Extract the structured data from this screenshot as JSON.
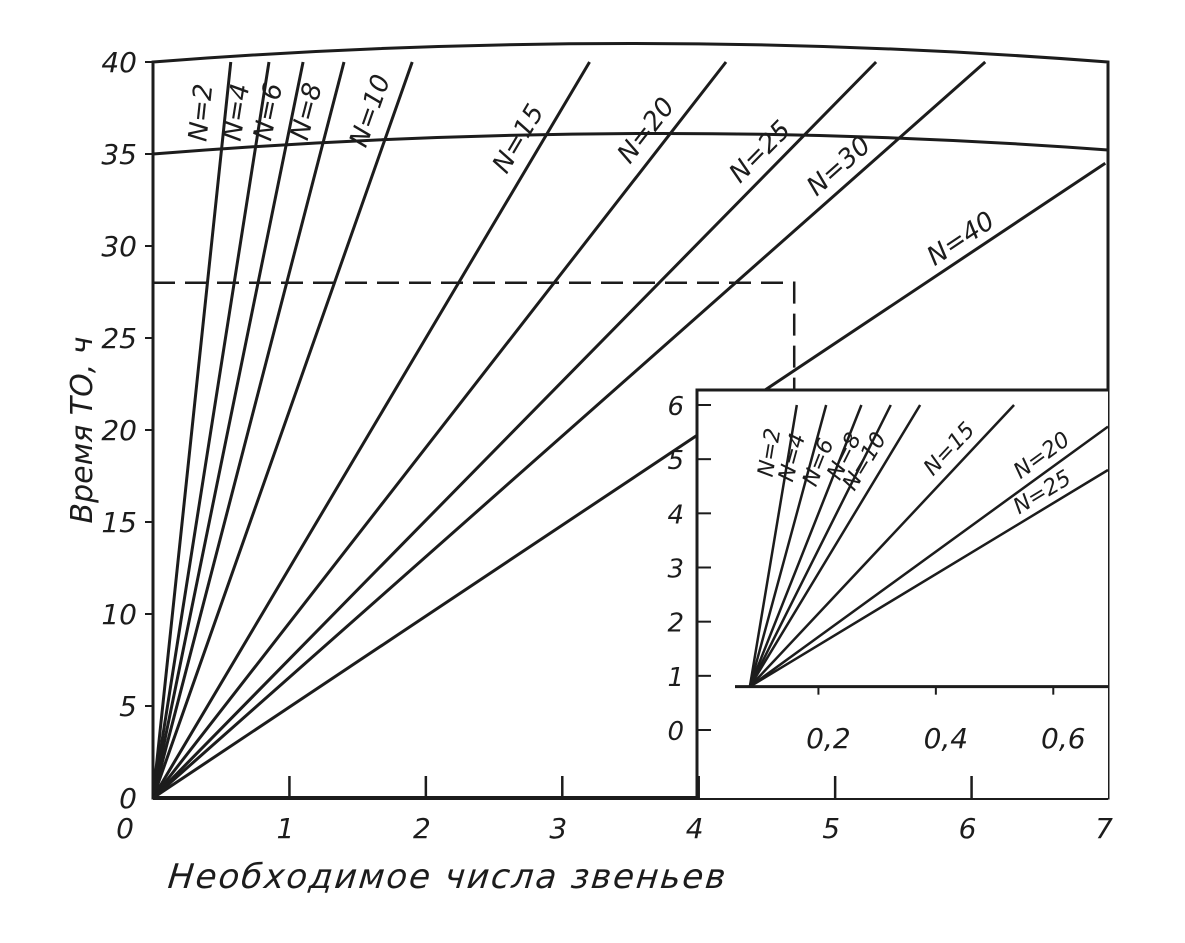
{
  "chart_data": [
    {
      "type": "line",
      "xlabel": "Необходимое числа звеньев",
      "ylabel": "Время ТО, ч",
      "xlim": [
        0,
        7
      ],
      "ylim": [
        0,
        40
      ],
      "x_ticks": [
        "0",
        "1",
        "2",
        "3",
        "4",
        "5",
        "6",
        "7"
      ],
      "y_ticks": [
        "0",
        "5",
        "10",
        "15",
        "20",
        "25",
        "30",
        "35",
        "40"
      ],
      "grid": false,
      "series": [
        {
          "name": "N=2",
          "x": [
            0,
            0.57
          ],
          "y": [
            0,
            40
          ]
        },
        {
          "name": "N=4",
          "x": [
            0,
            0.85
          ],
          "y": [
            0,
            40
          ]
        },
        {
          "name": "N=6",
          "x": [
            0,
            1.1
          ],
          "y": [
            0,
            40
          ]
        },
        {
          "name": "N=8",
          "x": [
            0,
            1.4
          ],
          "y": [
            0,
            40
          ]
        },
        {
          "name": "N=10",
          "x": [
            0,
            1.9
          ],
          "y": [
            0,
            40
          ]
        },
        {
          "name": "N=15",
          "x": [
            0,
            3.2
          ],
          "y": [
            0,
            40
          ]
        },
        {
          "name": "N=20",
          "x": [
            0,
            4.2
          ],
          "y": [
            0,
            40
          ]
        },
        {
          "name": "N=25",
          "x": [
            0,
            5.3
          ],
          "y": [
            0,
            40
          ]
        },
        {
          "name": "N=30",
          "x": [
            0,
            6.1
          ],
          "y": [
            0,
            40
          ]
        },
        {
          "name": "N=40",
          "x": [
            0,
            6.98
          ],
          "y": [
            0,
            34.5
          ]
        }
      ],
      "annotations": [
        {
          "type": "dashed-guide",
          "x": 4.7,
          "y": 28
        }
      ]
    },
    {
      "type": "line",
      "inset": true,
      "xlim": [
        0,
        0.7
      ],
      "ylim": [
        0,
        6
      ],
      "x_ticks": [
        "0,2",
        "0,4",
        "0,6"
      ],
      "y_ticks": [
        "0",
        "1",
        "2",
        "3",
        "4",
        "5",
        "6"
      ],
      "series": [
        {
          "name": "N=2",
          "x": [
            0.09,
            0.17
          ],
          "y": [
            0.8,
            6
          ]
        },
        {
          "name": "N=4",
          "x": [
            0.09,
            0.22
          ],
          "y": [
            0.8,
            6
          ]
        },
        {
          "name": "N=6",
          "x": [
            0.09,
            0.28
          ],
          "y": [
            0.8,
            6
          ]
        },
        {
          "name": "N=8",
          "x": [
            0.09,
            0.33
          ],
          "y": [
            0.8,
            6
          ]
        },
        {
          "name": "N=10",
          "x": [
            0.09,
            0.38
          ],
          "y": [
            0.8,
            6
          ]
        },
        {
          "name": "N=15",
          "x": [
            0.09,
            0.54
          ],
          "y": [
            0.8,
            6
          ]
        },
        {
          "name": "N=20",
          "x": [
            0.09,
            0.7
          ],
          "y": [
            0.8,
            5.6
          ]
        },
        {
          "name": "N=25",
          "x": [
            0.09,
            0.7
          ],
          "y": [
            0.8,
            4.8
          ]
        }
      ]
    }
  ]
}
